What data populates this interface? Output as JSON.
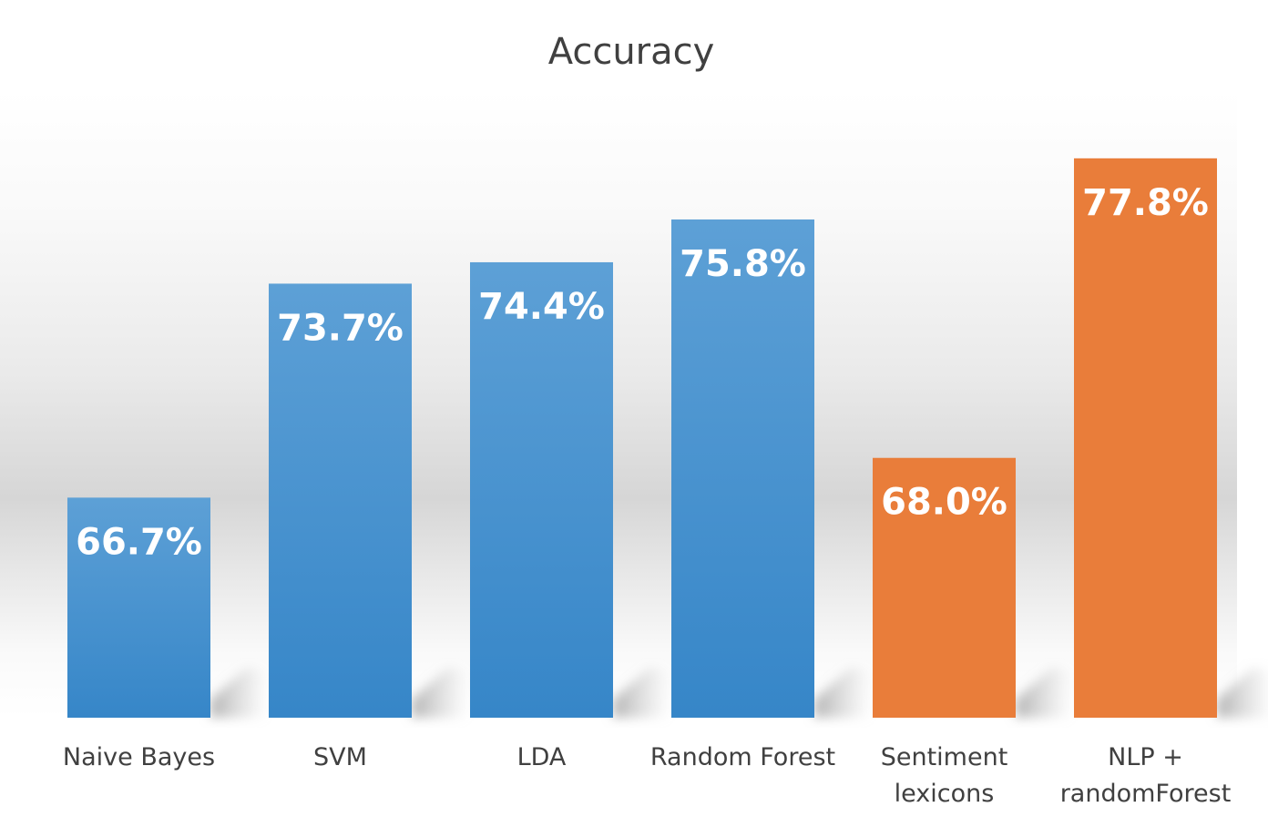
{
  "chart_data": {
    "type": "bar",
    "title": "Accuracy",
    "xlabel": "",
    "ylabel": "",
    "categories": [
      [
        "Naive Bayes"
      ],
      [
        "SVM"
      ],
      [
        "LDA"
      ],
      [
        "Random Forest"
      ],
      [
        "Sentiment",
        "lexicons"
      ],
      [
        "NLP +",
        "randomForest"
      ]
    ],
    "values": [
      66.7,
      73.7,
      74.4,
      75.8,
      68.0,
      77.8
    ],
    "value_labels": [
      "66.7%",
      "73.7%",
      "74.4%",
      "75.8%",
      "68.0%",
      "77.8%"
    ],
    "bar_colors": [
      "#4a8fcf",
      "#4a8fcf",
      "#4a8fcf",
      "#4a8fcf",
      "#e97d3a",
      "#e97d3a"
    ],
    "ylim": [
      59.5,
      80
    ],
    "grid": false,
    "legend": "none"
  },
  "colors": {
    "blue_top": "#5da0d6",
    "blue_bottom": "#3686c8",
    "orange": "#e97d3a",
    "text": "#404040"
  }
}
